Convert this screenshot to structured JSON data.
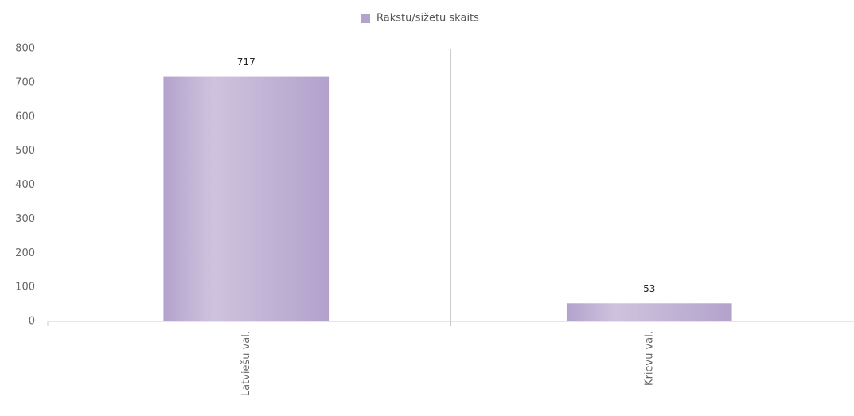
{
  "chart_data": {
    "type": "bar",
    "legend": "Rakstu/sižetu skaits",
    "categories": [
      "Latviešu val.",
      "Krievu val."
    ],
    "values": [
      717,
      53
    ],
    "color": "#b3a2cc",
    "ylim": [
      0,
      800
    ],
    "yticks": [
      0,
      100,
      200,
      300,
      400,
      500,
      600,
      700,
      800
    ],
    "legend_position": "top"
  }
}
